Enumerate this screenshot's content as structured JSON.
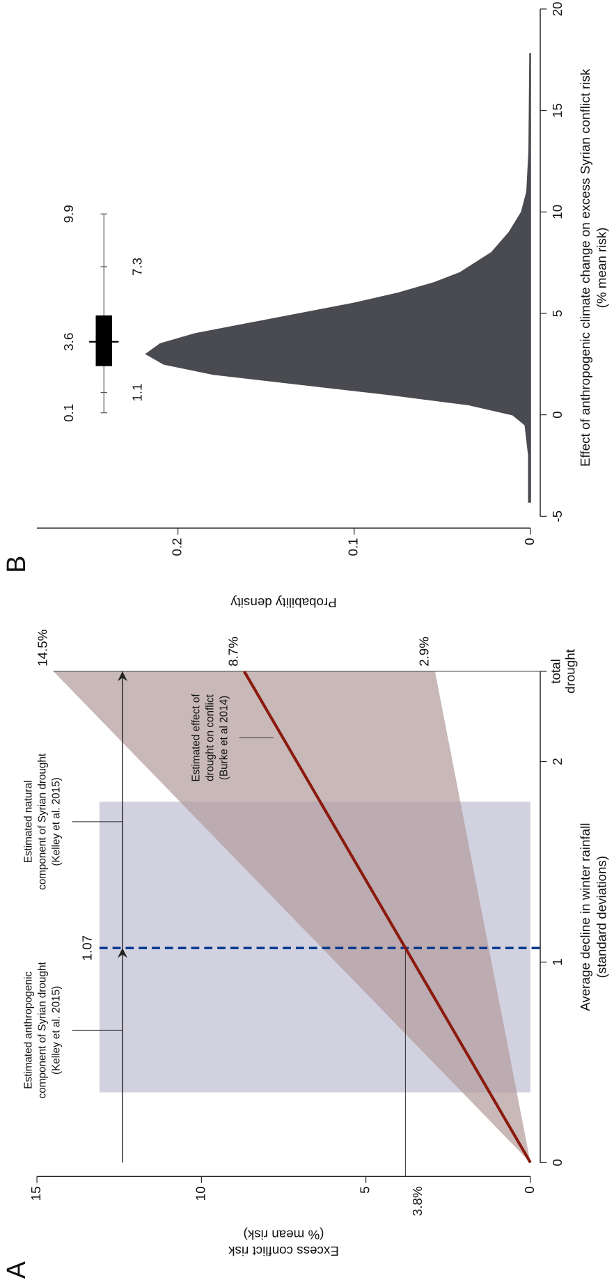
{
  "chart_data": [
    {
      "type": "line",
      "panel": "A",
      "xlabel": [
        "Average decline in winter rainfall",
        "(standard deviations)"
      ],
      "ylabel": [
        "Excess conflict risk",
        "(% mean risk)"
      ],
      "xlim": [
        0,
        2.45
      ],
      "ylim": [
        0,
        15
      ],
      "xticks": [
        0,
        1,
        2,
        {
          "value": 2.45,
          "label": [
            "total",
            "drought"
          ]
        }
      ],
      "yticks": [
        0,
        5,
        10,
        15
      ],
      "x": [
        0,
        2.45
      ],
      "values": [
        0,
        8.7
      ],
      "end_label": "8.7%",
      "color": "#8b1a0e",
      "band": {
        "upper": [
          0,
          14.5
        ],
        "lower": [
          0,
          2.9
        ],
        "upper_label": "14.5%",
        "lower_label": "2.9%",
        "color": "#b49c9c"
      },
      "shaded": {
        "x": [
          0.35,
          1.8
        ],
        "y": [
          0,
          13.1
        ],
        "color": "#c9c9db"
      },
      "marker": {
        "x": 1.07,
        "label": "1.07",
        "y": 3.8,
        "y_label": "3.8%",
        "color": "#0b3a8f"
      },
      "arrows_y": 12.4,
      "annotations": [
        [
          "Estimated anthropogenic",
          "component of Syrian drought",
          "(Kelley et al. 2015)"
        ],
        [
          "Estimated natural",
          "component of Syrian drought",
          "(Kelley et al. 2015)"
        ],
        [
          "Estimated effect of",
          "drought on conflict",
          "(Burke et al 2014)"
        ]
      ]
    },
    {
      "type": "area",
      "panel": "B",
      "xlabel": [
        "Effect of anthropogenic climate change on excess Syrian conflict risk",
        "(% mean risk)"
      ],
      "ylabel": [
        "Probability density"
      ],
      "xlim": [
        -5.5,
        20
      ],
      "ylim": [
        0,
        0.28
      ],
      "xticks": [
        -5,
        0,
        5,
        10,
        15,
        20
      ],
      "yticks": [
        0,
        0.1,
        0.2
      ],
      "x": [
        -4.3,
        -2,
        -0.5,
        0,
        0.5,
        1,
        1.5,
        2,
        2.5,
        3,
        3.5,
        4,
        4.5,
        5,
        5.5,
        6,
        6.5,
        7,
        8,
        9,
        10,
        11,
        13,
        17.8
      ],
      "values": [
        0.001,
        0.001,
        0.003,
        0.01,
        0.035,
        0.08,
        0.13,
        0.18,
        0.208,
        0.218,
        0.21,
        0.19,
        0.16,
        0.13,
        0.1,
        0.075,
        0.055,
        0.04,
        0.022,
        0.012,
        0.005,
        0.002,
        0.0008,
        0.0003
      ],
      "color": "#4a4b50",
      "box": {
        "y": 0.242,
        "whisker": [
          0.1,
          9.9
        ],
        "inner": [
          1.1,
          7.3
        ],
        "box": [
          2.4,
          4.9
        ],
        "median": 3.6
      }
    }
  ]
}
